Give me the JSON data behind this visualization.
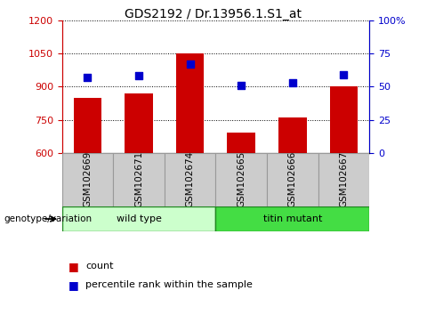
{
  "title": "GDS2192 / Dr.13956.1.S1_at",
  "samples": [
    "GSM102669",
    "GSM102671",
    "GSM102674",
    "GSM102665",
    "GSM102666",
    "GSM102667"
  ],
  "counts": [
    848,
    870,
    1052,
    690,
    760,
    900
  ],
  "percentile_ranks": [
    57,
    58,
    67,
    51,
    53,
    59
  ],
  "ylim_left": [
    600,
    1200
  ],
  "ylim_right": [
    0,
    100
  ],
  "yticks_left": [
    600,
    750,
    900,
    1050,
    1200
  ],
  "yticks_right": [
    0,
    25,
    50,
    75,
    100
  ],
  "bar_color": "#cc0000",
  "marker_color": "#0000cc",
  "groups": [
    {
      "label": "wild type",
      "indices": [
        0,
        1,
        2
      ],
      "color": "#ccffcc"
    },
    {
      "label": "titin mutant",
      "indices": [
        3,
        4,
        5
      ],
      "color": "#44dd44"
    }
  ],
  "grid_linestyle": "dotted",
  "left_axis_color": "#cc0000",
  "right_axis_color": "#0000cc",
  "sample_box_color": "#cccccc",
  "sample_box_edge": "#999999",
  "genotype_label": "genotype/variation",
  "bar_width": 0.55,
  "legend_count_label": "count",
  "legend_pct_label": "percentile rank within the sample"
}
